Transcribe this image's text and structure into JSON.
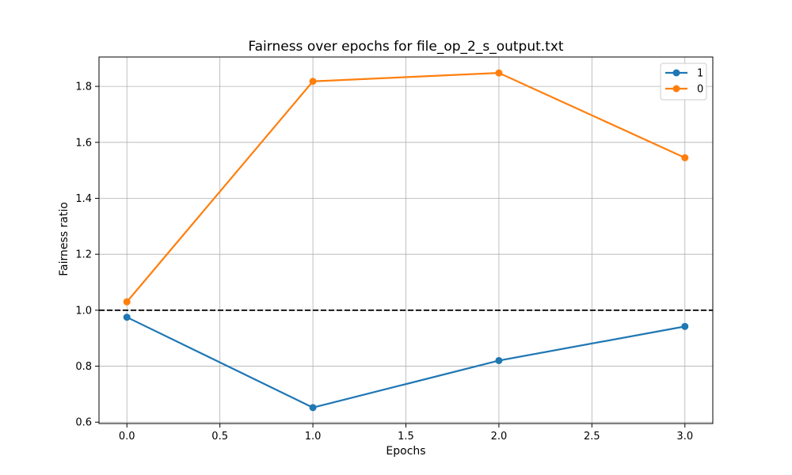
{
  "chart_data": {
    "type": "line",
    "title": "Fairness over epochs for file_op_2_s_output.txt",
    "xlabel": "Epochs",
    "ylabel": "Fairness ratio",
    "xlim": [
      -0.15,
      3.15
    ],
    "ylim": [
      0.595,
      1.905
    ],
    "xticks": [
      0.0,
      0.5,
      1.0,
      1.5,
      2.0,
      2.5,
      3.0
    ],
    "xtick_labels": [
      "0.0",
      "0.5",
      "1.0",
      "1.5",
      "2.0",
      "2.5",
      "3.0"
    ],
    "yticks": [
      0.6,
      0.8,
      1.0,
      1.2,
      1.4,
      1.6,
      1.8
    ],
    "ytick_labels": [
      "0.6",
      "0.8",
      "1.0",
      "1.2",
      "1.4",
      "1.6",
      "1.8"
    ],
    "grid": true,
    "legend_position": "top-right",
    "reference_line": {
      "y": 1.0,
      "style": "dashed",
      "color": "#000000"
    },
    "series": [
      {
        "name": "1",
        "color": "#1f77b4",
        "x": [
          0,
          1,
          2,
          3
        ],
        "y": [
          0.975,
          0.652,
          0.82,
          0.942
        ]
      },
      {
        "name": "0",
        "color": "#ff7f0e",
        "x": [
          0,
          1,
          2,
          3
        ],
        "y": [
          1.03,
          1.818,
          1.848,
          1.545
        ]
      }
    ]
  }
}
